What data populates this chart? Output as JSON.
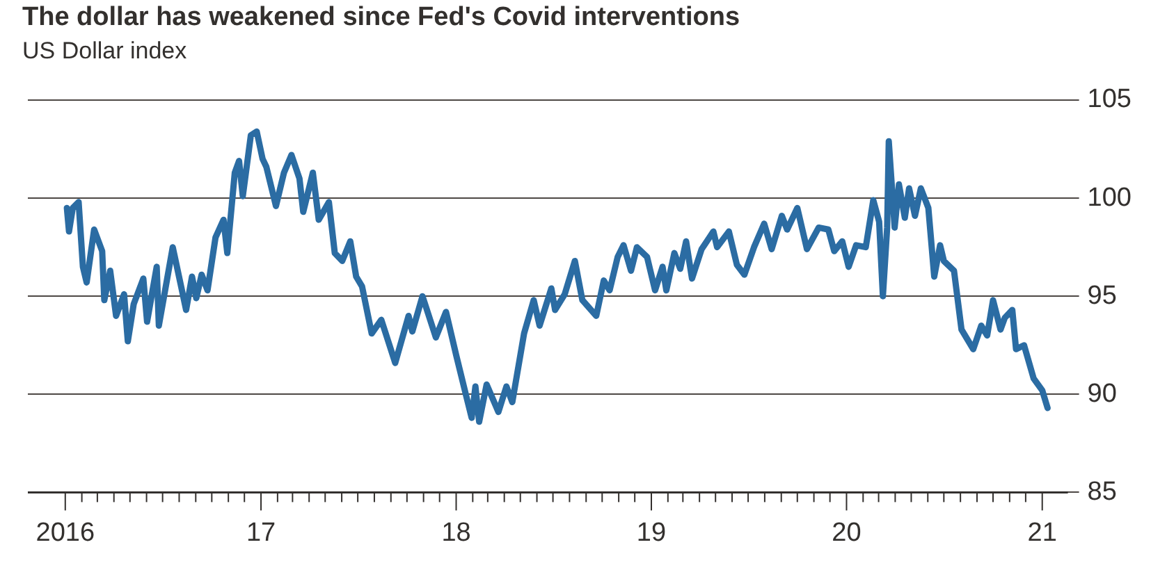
{
  "chart_data": {
    "type": "line",
    "title": "The dollar has weakened since Fed's Covid interventions",
    "subtitle": "US Dollar index",
    "color": "#2b6ca3",
    "grid": "y",
    "x": [
      "2016-01-04",
      "2016-01-08",
      "2016-01-15",
      "2016-01-26",
      "2016-02-03",
      "2016-02-10",
      "2016-02-24",
      "2016-03-10",
      "2016-03-14",
      "2016-03-25",
      "2016-04-05",
      "2016-04-20",
      "2016-04-27",
      "2016-05-08",
      "2016-05-26",
      "2016-06-02",
      "2016-06-20",
      "2016-06-24",
      "2016-07-20",
      "2016-08-14",
      "2016-08-25",
      "2016-09-02",
      "2016-09-12",
      "2016-09-23",
      "2016-10-08",
      "2016-10-23",
      "2016-10-30",
      "2016-11-13",
      "2016-11-21",
      "2016-11-28",
      "2016-12-13",
      "2016-12-24",
      "2017-01-04",
      "2017-01-11",
      "2017-01-29",
      "2017-02-13",
      "2017-02-27",
      "2017-03-14",
      "2017-03-21",
      "2017-04-08",
      "2017-04-19",
      "2017-05-08",
      "2017-05-19",
      "2017-06-02",
      "2017-06-17",
      "2017-06-28",
      "2017-07-09",
      "2017-07-27",
      "2017-08-14",
      "2017-09-09",
      "2017-10-04",
      "2017-10-11",
      "2017-10-30",
      "2017-11-24",
      "2017-12-13",
      "2018-01-01",
      "2018-01-19",
      "2018-01-30",
      "2018-02-06",
      "2018-02-13",
      "2018-02-27",
      "2018-03-21",
      "2018-04-05",
      "2018-04-16",
      "2018-05-08",
      "2018-05-26",
      "2018-06-06",
      "2018-06-28",
      "2018-07-05",
      "2018-07-23",
      "2018-08-11",
      "2018-08-25",
      "2018-09-20",
      "2018-10-04",
      "2018-10-15",
      "2018-10-30",
      "2018-11-10",
      "2018-11-24",
      "2018-12-05",
      "2018-12-24",
      "2019-01-08",
      "2019-01-22",
      "2019-01-29",
      "2019-02-13",
      "2019-02-24",
      "2019-03-07",
      "2019-03-18",
      "2019-04-05",
      "2019-04-27",
      "2019-05-04",
      "2019-05-26",
      "2019-06-10",
      "2019-06-24",
      "2019-07-12",
      "2019-07-31",
      "2019-08-14",
      "2019-09-02",
      "2019-09-12",
      "2019-10-01",
      "2019-10-19",
      "2019-11-10",
      "2019-11-28",
      "2019-12-09",
      "2019-12-24",
      "2020-01-05",
      "2020-01-19",
      "2020-02-06",
      "2020-02-20",
      "2020-03-02",
      "2020-03-09",
      "2020-03-17",
      "2020-03-20",
      "2020-03-31",
      "2020-04-08",
      "2020-04-19",
      "2020-04-27",
      "2020-05-08",
      "2020-05-19",
      "2020-06-02",
      "2020-06-13",
      "2020-06-24",
      "2020-07-01",
      "2020-07-20",
      "2020-08-03",
      "2020-08-25",
      "2020-09-09",
      "2020-09-20",
      "2020-10-01",
      "2020-10-15",
      "2020-10-23",
      "2020-11-06",
      "2020-11-13",
      "2020-11-28",
      "2020-12-16",
      "2021-01-01",
      "2021-01-11"
    ],
    "values": [
      99.5,
      98.3,
      99.5,
      99.8,
      96.5,
      95.7,
      98.4,
      97.3,
      94.8,
      96.3,
      94.0,
      95.1,
      92.7,
      94.6,
      95.9,
      93.7,
      96.5,
      93.5,
      97.5,
      94.3,
      96.0,
      94.9,
      96.1,
      95.3,
      98.0,
      98.9,
      97.2,
      101.3,
      101.9,
      100.1,
      103.2,
      103.4,
      102.0,
      101.6,
      99.6,
      101.3,
      102.2,
      101.0,
      99.3,
      101.3,
      98.9,
      99.8,
      97.2,
      96.8,
      97.8,
      96.0,
      95.5,
      93.1,
      93.8,
      91.6,
      94.0,
      93.2,
      95.0,
      92.9,
      94.2,
      92.0,
      90.0,
      88.8,
      90.4,
      88.6,
      90.5,
      89.1,
      90.4,
      89.6,
      93.1,
      94.8,
      93.5,
      95.4,
      94.3,
      95.1,
      96.8,
      94.8,
      94.0,
      95.8,
      95.3,
      97.0,
      97.6,
      96.3,
      97.5,
      97.0,
      95.3,
      96.5,
      95.3,
      97.2,
      96.4,
      97.8,
      95.9,
      97.4,
      98.3,
      97.5,
      98.3,
      96.6,
      96.1,
      97.5,
      98.7,
      97.4,
      99.1,
      98.4,
      99.5,
      97.4,
      98.5,
      98.4,
      97.3,
      97.8,
      96.5,
      97.6,
      97.5,
      99.9,
      98.8,
      95.0,
      98.5,
      102.9,
      98.5,
      100.7,
      99.0,
      100.5,
      99.1,
      100.5,
      99.5,
      96.0,
      97.6,
      96.8,
      96.3,
      93.3,
      92.3,
      93.5,
      93.0,
      94.8,
      93.3,
      93.9,
      94.3,
      92.3,
      92.5,
      90.8,
      90.2,
      89.3
    ],
    "xlim": [
      "2015-10-23",
      "2021-02-18"
    ],
    "xticks": [
      {
        "value": "2016-01",
        "label": "2016"
      },
      {
        "value": "2016-02",
        "label": null
      },
      {
        "value": "2016-03",
        "label": null
      },
      {
        "value": "2016-04",
        "label": null
      },
      {
        "value": "2016-05",
        "label": null
      },
      {
        "value": "2016-06",
        "label": null
      },
      {
        "value": "2016-07",
        "label": null
      },
      {
        "value": "2016-08",
        "label": null
      },
      {
        "value": "2016-09",
        "label": null
      },
      {
        "value": "2016-10",
        "label": null
      },
      {
        "value": "2016-11",
        "label": null
      },
      {
        "value": "2016-12",
        "label": null
      },
      {
        "value": "2017-01",
        "label": "17"
      },
      {
        "value": "2017-02",
        "label": null
      },
      {
        "value": "2017-03",
        "label": null
      },
      {
        "value": "2017-04",
        "label": null
      },
      {
        "value": "2017-05",
        "label": null
      },
      {
        "value": "2017-06",
        "label": null
      },
      {
        "value": "2017-07",
        "label": null
      },
      {
        "value": "2017-08",
        "label": null
      },
      {
        "value": "2017-09",
        "label": null
      },
      {
        "value": "2017-10",
        "label": null
      },
      {
        "value": "2017-11",
        "label": null
      },
      {
        "value": "2017-12",
        "label": null
      },
      {
        "value": "2018-01",
        "label": "18"
      },
      {
        "value": "2018-02",
        "label": null
      },
      {
        "value": "2018-03",
        "label": null
      },
      {
        "value": "2018-04",
        "label": null
      },
      {
        "value": "2018-05",
        "label": null
      },
      {
        "value": "2018-06",
        "label": null
      },
      {
        "value": "2018-07",
        "label": null
      },
      {
        "value": "2018-08",
        "label": null
      },
      {
        "value": "2018-09",
        "label": null
      },
      {
        "value": "2018-10",
        "label": null
      },
      {
        "value": "2018-11",
        "label": null
      },
      {
        "value": "2018-12",
        "label": null
      },
      {
        "value": "2019-01",
        "label": "19"
      },
      {
        "value": "2019-02",
        "label": null
      },
      {
        "value": "2019-03",
        "label": null
      },
      {
        "value": "2019-04",
        "label": null
      },
      {
        "value": "2019-05",
        "label": null
      },
      {
        "value": "2019-06",
        "label": null
      },
      {
        "value": "2019-07",
        "label": null
      },
      {
        "value": "2019-08",
        "label": null
      },
      {
        "value": "2019-09",
        "label": null
      },
      {
        "value": "2019-10",
        "label": null
      },
      {
        "value": "2019-11",
        "label": null
      },
      {
        "value": "2019-12",
        "label": null
      },
      {
        "value": "2020-01",
        "label": "20"
      },
      {
        "value": "2020-02",
        "label": null
      },
      {
        "value": "2020-03",
        "label": null
      },
      {
        "value": "2020-04",
        "label": null
      },
      {
        "value": "2020-05",
        "label": null
      },
      {
        "value": "2020-06",
        "label": null
      },
      {
        "value": "2020-07",
        "label": null
      },
      {
        "value": "2020-08",
        "label": null
      },
      {
        "value": "2020-09",
        "label": null
      },
      {
        "value": "2020-10",
        "label": null
      },
      {
        "value": "2020-11",
        "label": null
      },
      {
        "value": "2020-12",
        "label": null
      },
      {
        "value": "2021-01",
        "label": "21"
      }
    ],
    "ylim": [
      85,
      105
    ],
    "yticks": [
      85,
      90,
      95,
      100,
      105
    ]
  }
}
